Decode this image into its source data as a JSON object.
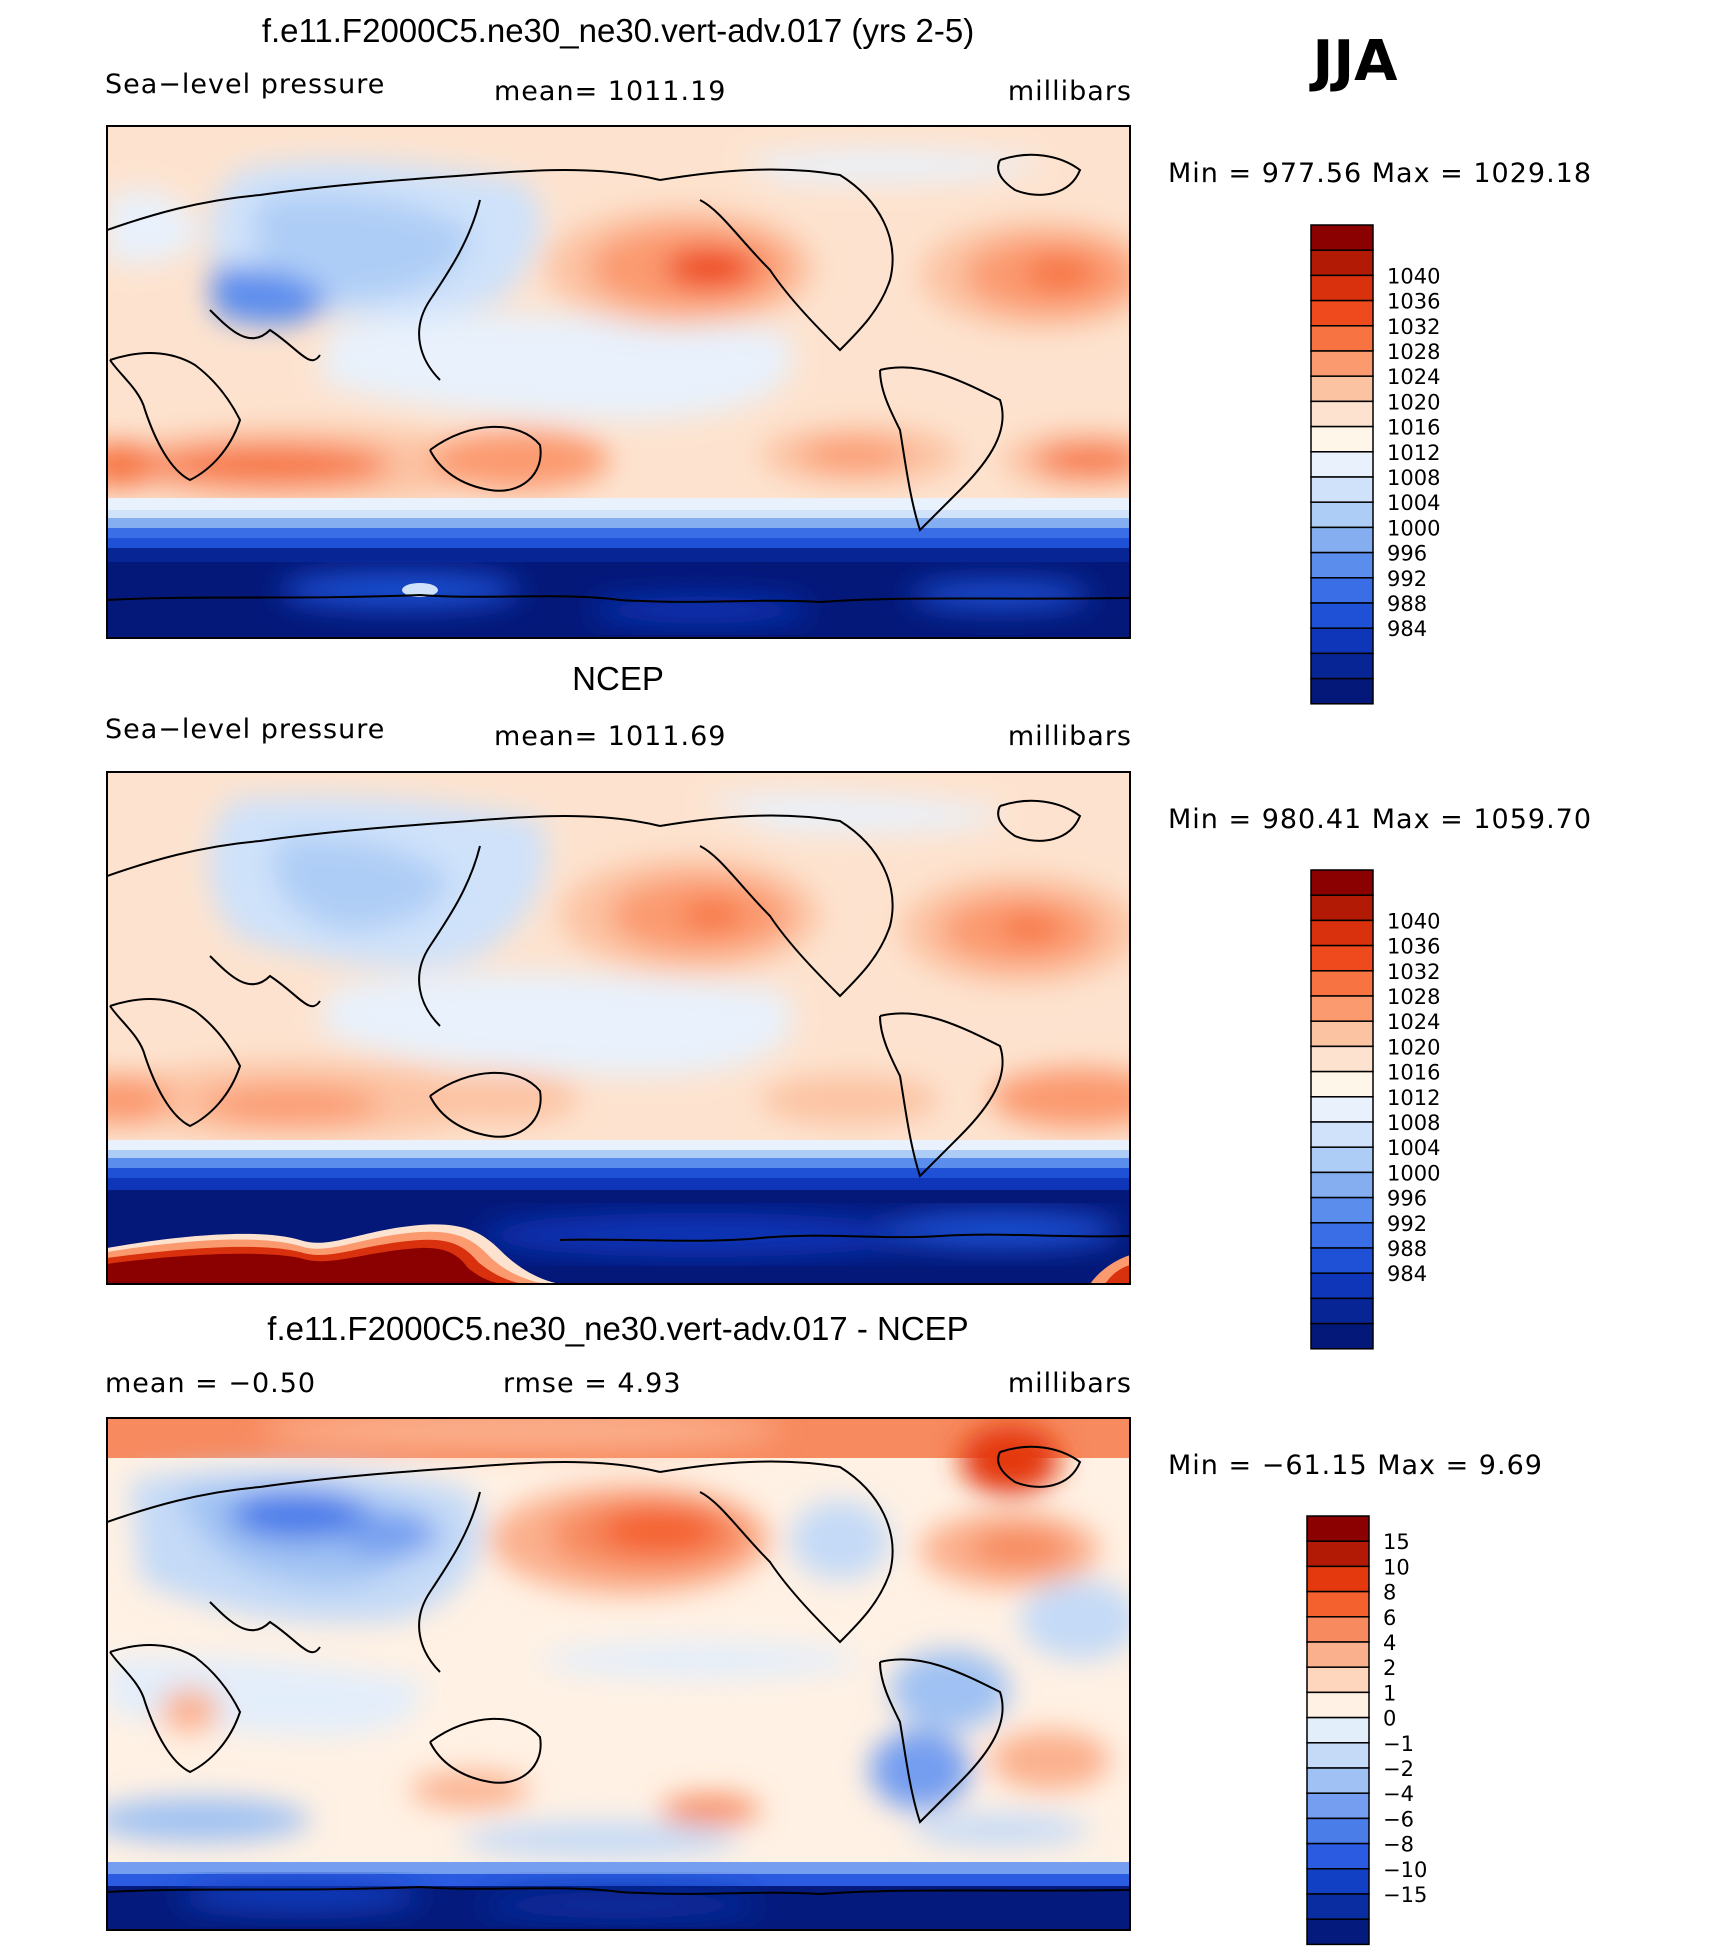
{
  "season": "JJA",
  "colors": {
    "scale": [
      "#8b0000",
      "#b31a06",
      "#d9300e",
      "#ee4a1e",
      "#f77442",
      "#fb9a6f",
      "#fcc3a3",
      "#fde3cf",
      "#fff6ea",
      "#e8f1fc",
      "#cfe2fa",
      "#aecdf6",
      "#84aef0",
      "#5b8ded",
      "#3a6ee6",
      "#1e51d6",
      "#0f36b8",
      "#082596",
      "#04187a"
    ],
    "anom": [
      "#8b0000",
      "#b31a06",
      "#e4380f",
      "#f4612e",
      "#f78a5f",
      "#fbb08d",
      "#fdd6bd",
      "#fff1e4",
      "#e3eefb",
      "#c4daf7",
      "#9fc1f3",
      "#759ef0",
      "#4b7de9",
      "#2a5be0",
      "#1240c4",
      "#0a2da2",
      "#041b7d"
    ]
  },
  "panels": [
    {
      "id": "model",
      "title": "f.e11.F2000C5.ne30_ne30.vert-adv.017 (yrs 2-5)",
      "left_label": "Sea−level pressure",
      "center_label": "mean=  1011.19",
      "right_label": "millibars",
      "minmax": "Min  =  977.56  Max  =  1029.18",
      "colorbar_labels": [
        "1040",
        "1036",
        "1032",
        "1028",
        "1024",
        "1020",
        "1016",
        "1012",
        "1008",
        "1004",
        "1000",
        "996",
        "992",
        "988",
        "984"
      ]
    },
    {
      "id": "obs",
      "title": "NCEP",
      "left_label": "Sea−level pressure",
      "center_label": "mean=  1011.69",
      "right_label": "millibars",
      "minmax": "Min  =  980.41  Max  =  1059.70",
      "colorbar_labels": [
        "1040",
        "1036",
        "1032",
        "1028",
        "1024",
        "1020",
        "1016",
        "1012",
        "1008",
        "1004",
        "1000",
        "996",
        "992",
        "988",
        "984"
      ]
    },
    {
      "id": "diff",
      "title": "f.e11.F2000C5.ne30_ne30.vert-adv.017 - NCEP",
      "left_label": "mean  =     −0.50",
      "center_label": "rmse  =     4.93",
      "right_label": "millibars",
      "minmax": "Min  =  −61.15  Max  =      9.69",
      "colorbar_labels": [
        "15",
        "10",
        "8",
        "6",
        "4",
        "2",
        "1",
        "0",
        "−1",
        "−2",
        "−4",
        "−6",
        "−8",
        "−10",
        "−15"
      ]
    }
  ]
}
